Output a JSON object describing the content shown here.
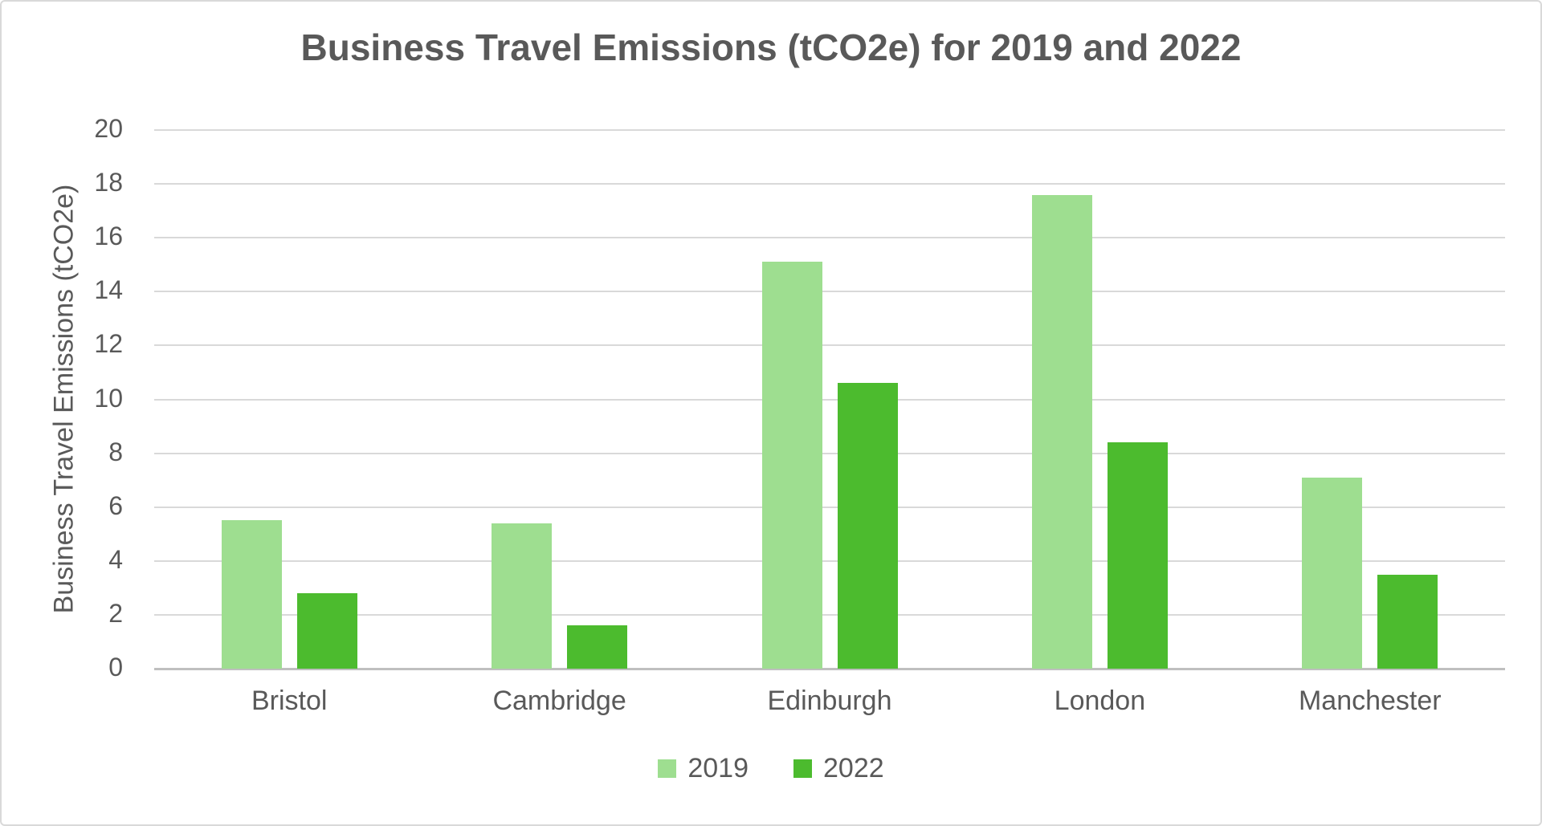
{
  "chart_data": {
    "type": "bar",
    "title": "Business Travel Emissions (tCO2e) for 2019 and 2022",
    "xlabel": "",
    "ylabel": "Business Travel Emissions (tCO2e)",
    "categories": [
      "Bristol",
      "Cambridge",
      "Edinburgh",
      "London",
      "Manchester"
    ],
    "series": [
      {
        "name": "2019",
        "color": "#9EDE90",
        "values": [
          5.5,
          5.4,
          15.1,
          17.6,
          7.1
        ]
      },
      {
        "name": "2022",
        "color": "#4CBB2E",
        "values": [
          2.8,
          1.6,
          10.6,
          8.4,
          3.5
        ]
      }
    ],
    "ylim": [
      0,
      20
    ],
    "ytick_step": 2,
    "grid": true,
    "legend_position": "bottom"
  },
  "colors": {
    "text": "#595959",
    "gridline": "#D9D9D9",
    "axis_line": "#BFBFBF",
    "frame_border": "#D9D9D9",
    "background": "#FFFFFF"
  }
}
